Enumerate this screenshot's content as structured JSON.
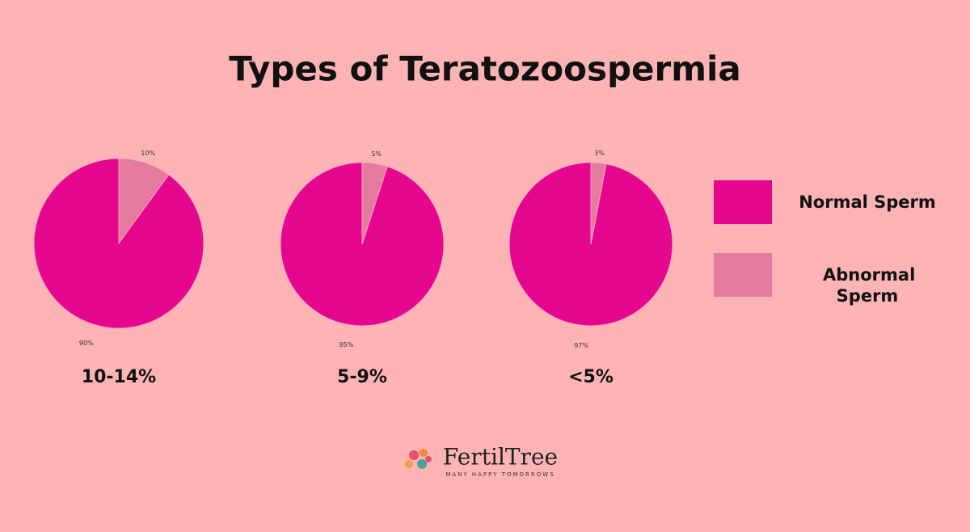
{
  "title": "Types of Teratozoospermia",
  "chart_data": [
    {
      "type": "pie",
      "title": "10-14%",
      "categories": [
        "Normal Sperm",
        "Abnormal Sperm"
      ],
      "values": [
        90,
        10
      ],
      "value_labels": [
        "90%",
        "10%"
      ],
      "colors": [
        "#e6058f",
        "#e57a9e"
      ]
    },
    {
      "type": "pie",
      "title": "5-9%",
      "categories": [
        "Normal Sperm",
        "Abnormal Sperm"
      ],
      "values": [
        95,
        5
      ],
      "value_labels": [
        "95%",
        "5%"
      ],
      "colors": [
        "#e6058f",
        "#e57a9e"
      ]
    },
    {
      "type": "pie",
      "title": "<5%",
      "categories": [
        "Normal Sperm",
        "Abnormal Sperm"
      ],
      "values": [
        97,
        3
      ],
      "value_labels": [
        "97%",
        "3%"
      ],
      "colors": [
        "#e6058f",
        "#e57a9e"
      ]
    }
  ],
  "logo": {
    "name": "FertilTree",
    "tagline": "MANY HAPPY TOMORROWS"
  }
}
